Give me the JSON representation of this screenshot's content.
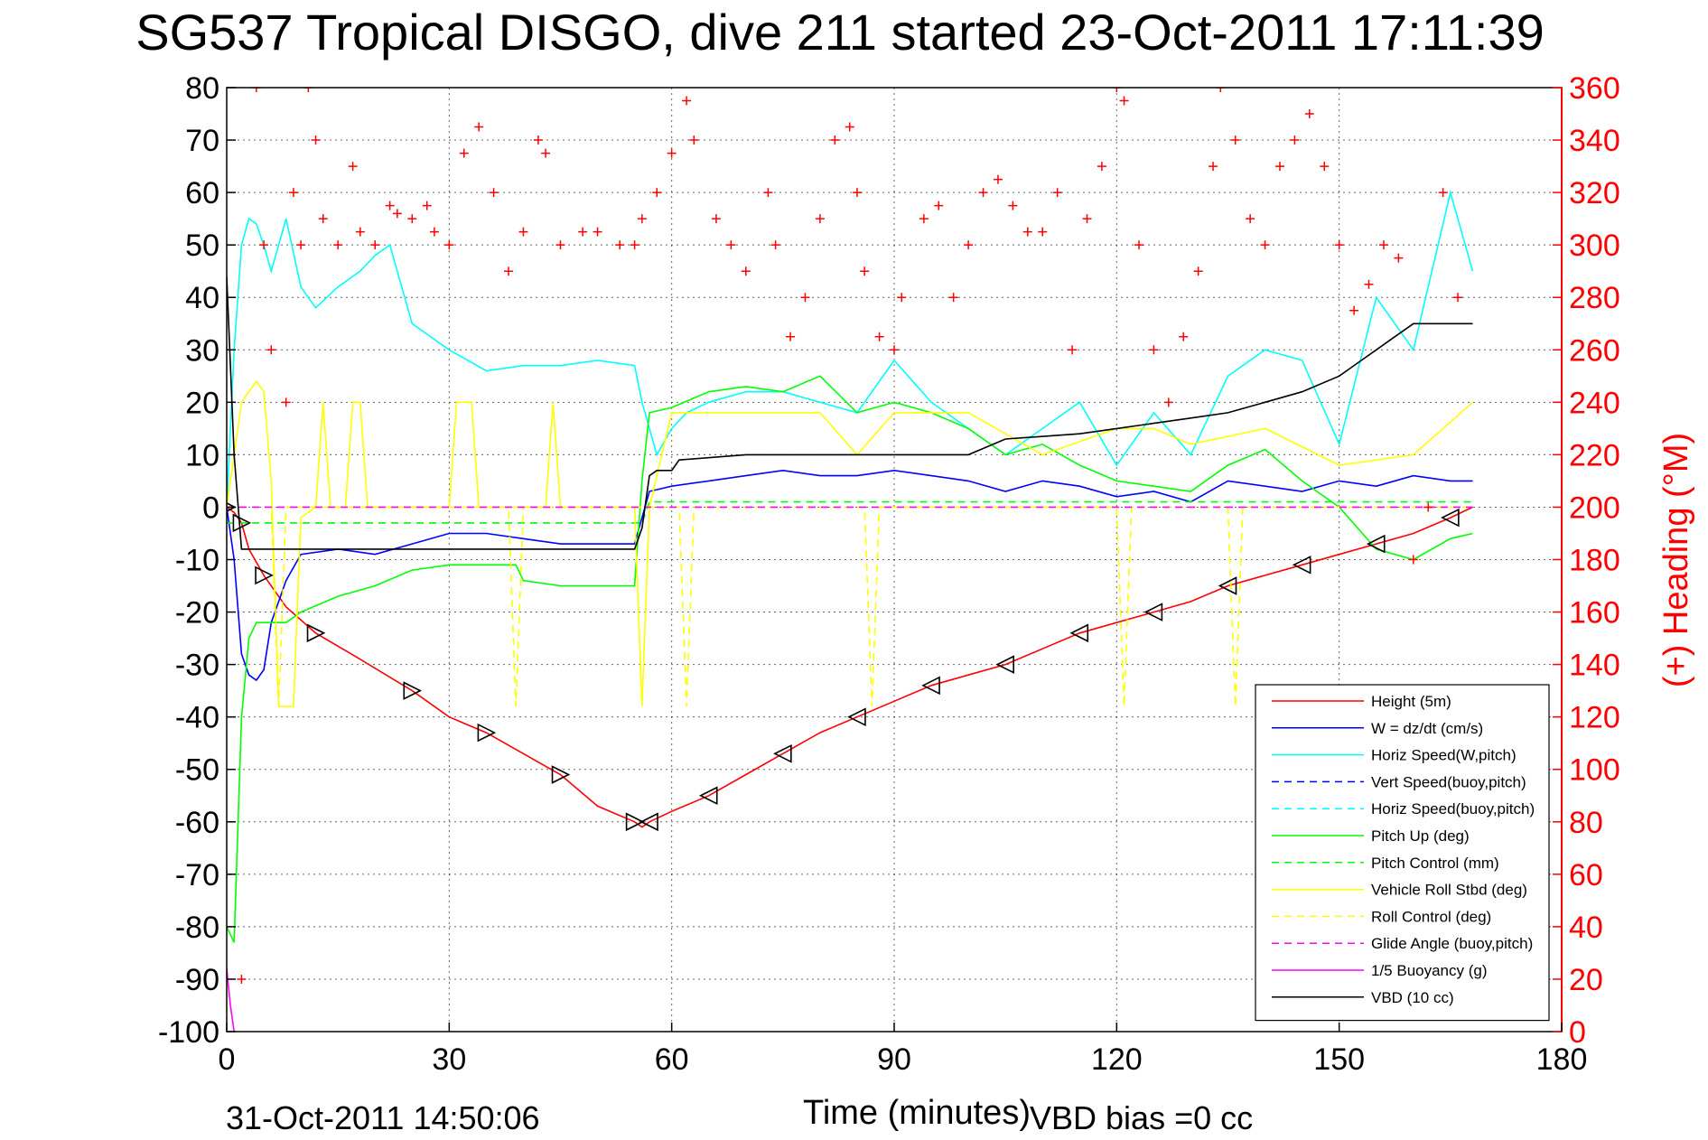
{
  "chart_data": {
    "type": "line",
    "title": "SG537 Tropical DISGO, dive 211 started 23-Oct-2011 17:11:39",
    "xlabel": "Time (minutes)",
    "ylabel_right": "(+) Heading (°M)",
    "footer_left": "31-Oct-2011 14:50:06",
    "footer_right": "VBD bias =0 cc",
    "xlim": [
      0,
      180
    ],
    "ylim": [
      -100,
      80
    ],
    "ylim_right": [
      0,
      360
    ],
    "xticks": [
      0,
      30,
      60,
      90,
      120,
      150,
      180
    ],
    "yticks": [
      -100,
      -90,
      -80,
      -70,
      -60,
      -50,
      -40,
      -30,
      -20,
      -10,
      0,
      10,
      20,
      30,
      40,
      50,
      60,
      70,
      80
    ],
    "yticks_right": [
      0,
      20,
      40,
      60,
      80,
      100,
      120,
      140,
      160,
      180,
      200,
      220,
      240,
      260,
      280,
      300,
      320,
      340,
      360
    ],
    "grid": true,
    "legend_position": "bottom-right",
    "colors": {
      "height": "#ff0000",
      "w": "#0000ff",
      "horiz_speed": "#00ffff",
      "pitch_up": "#00ff00",
      "roll": "#ffff00",
      "glide": "#ff00ff",
      "vbd": "#000000",
      "heading": "#ff0000"
    },
    "series": [
      {
        "name": "Height (5m)",
        "key": "height",
        "style": "solid",
        "x": [
          0,
          1,
          2,
          3,
          5,
          8,
          12,
          18,
          25,
          30,
          35,
          40,
          45,
          50,
          55,
          56,
          57,
          60,
          65,
          70,
          75,
          80,
          85,
          90,
          95,
          100,
          105,
          110,
          115,
          120,
          125,
          130,
          135,
          140,
          145,
          150,
          155,
          160,
          165,
          168
        ],
        "y": [
          0,
          -1,
          -3,
          -8,
          -13,
          -19,
          -24,
          -29,
          -35,
          -40,
          -43,
          -47,
          -51,
          -57,
          -60,
          -61,
          -60,
          -58,
          -55,
          -51,
          -47,
          -43,
          -40,
          -37,
          -34,
          -32,
          -30,
          -27,
          -24,
          -22,
          -20,
          -18,
          -15,
          -13,
          -11,
          -9,
          -7,
          -5,
          -2,
          0
        ]
      },
      {
        "name": "W = dz/dt (cm/s)",
        "key": "w",
        "style": "solid",
        "x": [
          0,
          1,
          2,
          3,
          4,
          5,
          6,
          8,
          10,
          15,
          20,
          25,
          30,
          35,
          40,
          45,
          50,
          55,
          56,
          57,
          60,
          65,
          70,
          75,
          80,
          85,
          90,
          95,
          100,
          105,
          110,
          115,
          120,
          125,
          130,
          135,
          140,
          145,
          150,
          155,
          160,
          165,
          168
        ],
        "y": [
          0,
          -10,
          -28,
          -32,
          -33,
          -31,
          -22,
          -14,
          -9,
          -8,
          -9,
          -7,
          -5,
          -5,
          -6,
          -7,
          -7,
          -7,
          -2,
          3,
          4,
          5,
          6,
          7,
          6,
          6,
          7,
          6,
          5,
          3,
          5,
          4,
          2,
          3,
          1,
          5,
          4,
          3,
          5,
          4,
          6,
          5,
          5
        ]
      },
      {
        "name": "Horiz Speed(W,pitch)",
        "key": "horiz_speed",
        "style": "solid",
        "x": [
          0,
          1,
          2,
          3,
          4,
          5,
          6,
          8,
          10,
          12,
          15,
          18,
          20,
          22,
          25,
          30,
          35,
          40,
          45,
          50,
          55,
          56,
          58,
          60,
          62,
          65,
          70,
          75,
          80,
          85,
          90,
          95,
          100,
          105,
          110,
          115,
          120,
          125,
          130,
          135,
          140,
          145,
          150,
          155,
          160,
          165,
          168
        ],
        "y": [
          0,
          30,
          50,
          55,
          54,
          50,
          45,
          55,
          42,
          38,
          42,
          45,
          48,
          50,
          35,
          30,
          26,
          27,
          27,
          28,
          27,
          20,
          10,
          15,
          18,
          20,
          22,
          22,
          20,
          18,
          28,
          20,
          15,
          10,
          15,
          20,
          8,
          18,
          10,
          25,
          30,
          28,
          12,
          40,
          30,
          60,
          45
        ]
      },
      {
        "name": "Vert Speed(buoy,pitch)",
        "key": "w",
        "style": "dashed",
        "x": [],
        "y": []
      },
      {
        "name": "Horiz Speed(buoy,pitch)",
        "key": "horiz_speed",
        "style": "dashed",
        "x": [],
        "y": []
      },
      {
        "name": "Pitch Up (deg)",
        "key": "pitch_up",
        "style": "solid",
        "x": [
          0,
          1,
          2,
          3,
          4,
          6,
          8,
          10,
          15,
          20,
          25,
          30,
          35,
          39,
          40,
          45,
          50,
          55,
          56,
          57,
          60,
          65,
          70,
          75,
          80,
          85,
          90,
          95,
          100,
          105,
          110,
          115,
          120,
          125,
          130,
          135,
          140,
          145,
          150,
          155,
          160,
          165,
          168
        ],
        "y": [
          -80,
          -83,
          -40,
          -25,
          -22,
          -22,
          -22,
          -20,
          -17,
          -15,
          -12,
          -11,
          -11,
          -11,
          -14,
          -15,
          -15,
          -15,
          5,
          18,
          19,
          22,
          23,
          22,
          25,
          18,
          20,
          18,
          15,
          10,
          12,
          8,
          5,
          4,
          3,
          8,
          11,
          5,
          0,
          -8,
          -10,
          -6,
          -5
        ]
      },
      {
        "name": "Pitch Control (mm)",
        "key": "pitch_up",
        "style": "dashed",
        "x": [
          0,
          2,
          30,
          56,
          57,
          120,
          150,
          168
        ],
        "y": [
          -3,
          -3,
          -3,
          -3,
          1,
          1,
          1,
          1
        ]
      },
      {
        "name": "Vehicle Roll Stbd (deg)",
        "key": "roll",
        "style": "solid",
        "x": [
          0,
          1,
          2,
          3,
          4,
          5,
          6,
          7,
          8,
          9,
          10,
          12,
          13,
          14,
          16,
          17,
          18,
          19,
          30,
          31,
          32,
          33,
          34,
          40,
          43,
          44,
          45,
          55,
          56,
          57,
          60,
          70,
          80,
          85,
          90,
          100,
          110,
          120,
          125,
          130,
          140,
          150,
          160,
          168
        ],
        "y": [
          0,
          10,
          20,
          22,
          24,
          22,
          5,
          -38,
          -38,
          -38,
          -2,
          0,
          20,
          0,
          0,
          20,
          20,
          0,
          0,
          20,
          20,
          20,
          0,
          0,
          0,
          20,
          0,
          0,
          -38,
          0,
          18,
          18,
          18,
          10,
          18,
          18,
          10,
          15,
          15,
          12,
          15,
          8,
          10,
          20
        ]
      },
      {
        "name": "Roll Control (deg)",
        "key": "roll",
        "style": "dashed",
        "x": [
          0,
          3,
          6,
          7,
          8,
          30,
          38,
          39,
          40,
          56,
          61,
          62,
          63,
          86,
          87,
          88,
          120,
          121,
          122,
          135,
          136,
          137,
          168
        ],
        "y": [
          0,
          0,
          0,
          -38,
          0,
          0,
          0,
          -38,
          0,
          0,
          0,
          -38,
          0,
          0,
          -38,
          0,
          0,
          -38,
          0,
          0,
          -38,
          0,
          0
        ]
      },
      {
        "name": "Glide Angle (buoy,pitch)",
        "key": "glide",
        "style": "dashed",
        "x": [
          0,
          168
        ],
        "y": [
          0,
          0
        ]
      },
      {
        "name": "1/5 Buoyancy (g)",
        "key": "glide",
        "style": "solid",
        "x": [
          0,
          0.5,
          1
        ],
        "y": [
          -88,
          -95,
          -100
        ]
      },
      {
        "name": "VBD (10 cc)",
        "key": "vbd",
        "style": "solid",
        "x": [
          0,
          1,
          2,
          55,
          56,
          57,
          58,
          60,
          61,
          70,
          100,
          105,
          115,
          120,
          125,
          130,
          135,
          140,
          145,
          150,
          153,
          155,
          157,
          160,
          168
        ],
        "y": [
          44,
          10,
          -8,
          -8,
          -4,
          6,
          7,
          7,
          9,
          10,
          10,
          13,
          14,
          15,
          16,
          17,
          18,
          20,
          22,
          25,
          28,
          30,
          32,
          35,
          35
        ]
      },
      {
        "name": "Heading",
        "key": "heading",
        "style": "marker",
        "axis": "right",
        "x": [
          0,
          2,
          4,
          5,
          6,
          8,
          9,
          10,
          11,
          12,
          13,
          15,
          17,
          18,
          20,
          22,
          23,
          25,
          27,
          28,
          30,
          32,
          34,
          36,
          38,
          40,
          42,
          43,
          45,
          48,
          50,
          53,
          55,
          56,
          58,
          60,
          62,
          63,
          66,
          68,
          70,
          73,
          74,
          76,
          78,
          80,
          82,
          84,
          85,
          86,
          88,
          90,
          91,
          94,
          96,
          98,
          100,
          102,
          104,
          106,
          108,
          110,
          112,
          114,
          116,
          118,
          120,
          121,
          123,
          125,
          127,
          129,
          131,
          133,
          134,
          136,
          138,
          140,
          142,
          144,
          146,
          148,
          150,
          152,
          154,
          156,
          158,
          160,
          162,
          164,
          166
        ],
        "y": [
          60,
          20,
          360,
          300,
          260,
          240,
          320,
          300,
          360,
          340,
          310,
          300,
          330,
          305,
          300,
          315,
          312,
          310,
          315,
          305,
          300,
          335,
          345,
          320,
          290,
          305,
          340,
          335,
          300,
          305,
          305,
          300,
          300,
          310,
          320,
          335,
          355,
          340,
          310,
          300,
          290,
          320,
          300,
          265,
          280,
          310,
          340,
          345,
          320,
          290,
          265,
          260,
          280,
          310,
          315,
          280,
          300,
          320,
          325,
          315,
          305,
          305,
          320,
          260,
          310,
          330,
          360,
          355,
          300,
          260,
          240,
          265,
          290,
          330,
          360,
          340,
          310,
          300,
          330,
          340,
          350,
          330,
          300,
          275,
          285,
          300,
          295,
          180,
          200,
          320,
          280
        ]
      }
    ]
  }
}
